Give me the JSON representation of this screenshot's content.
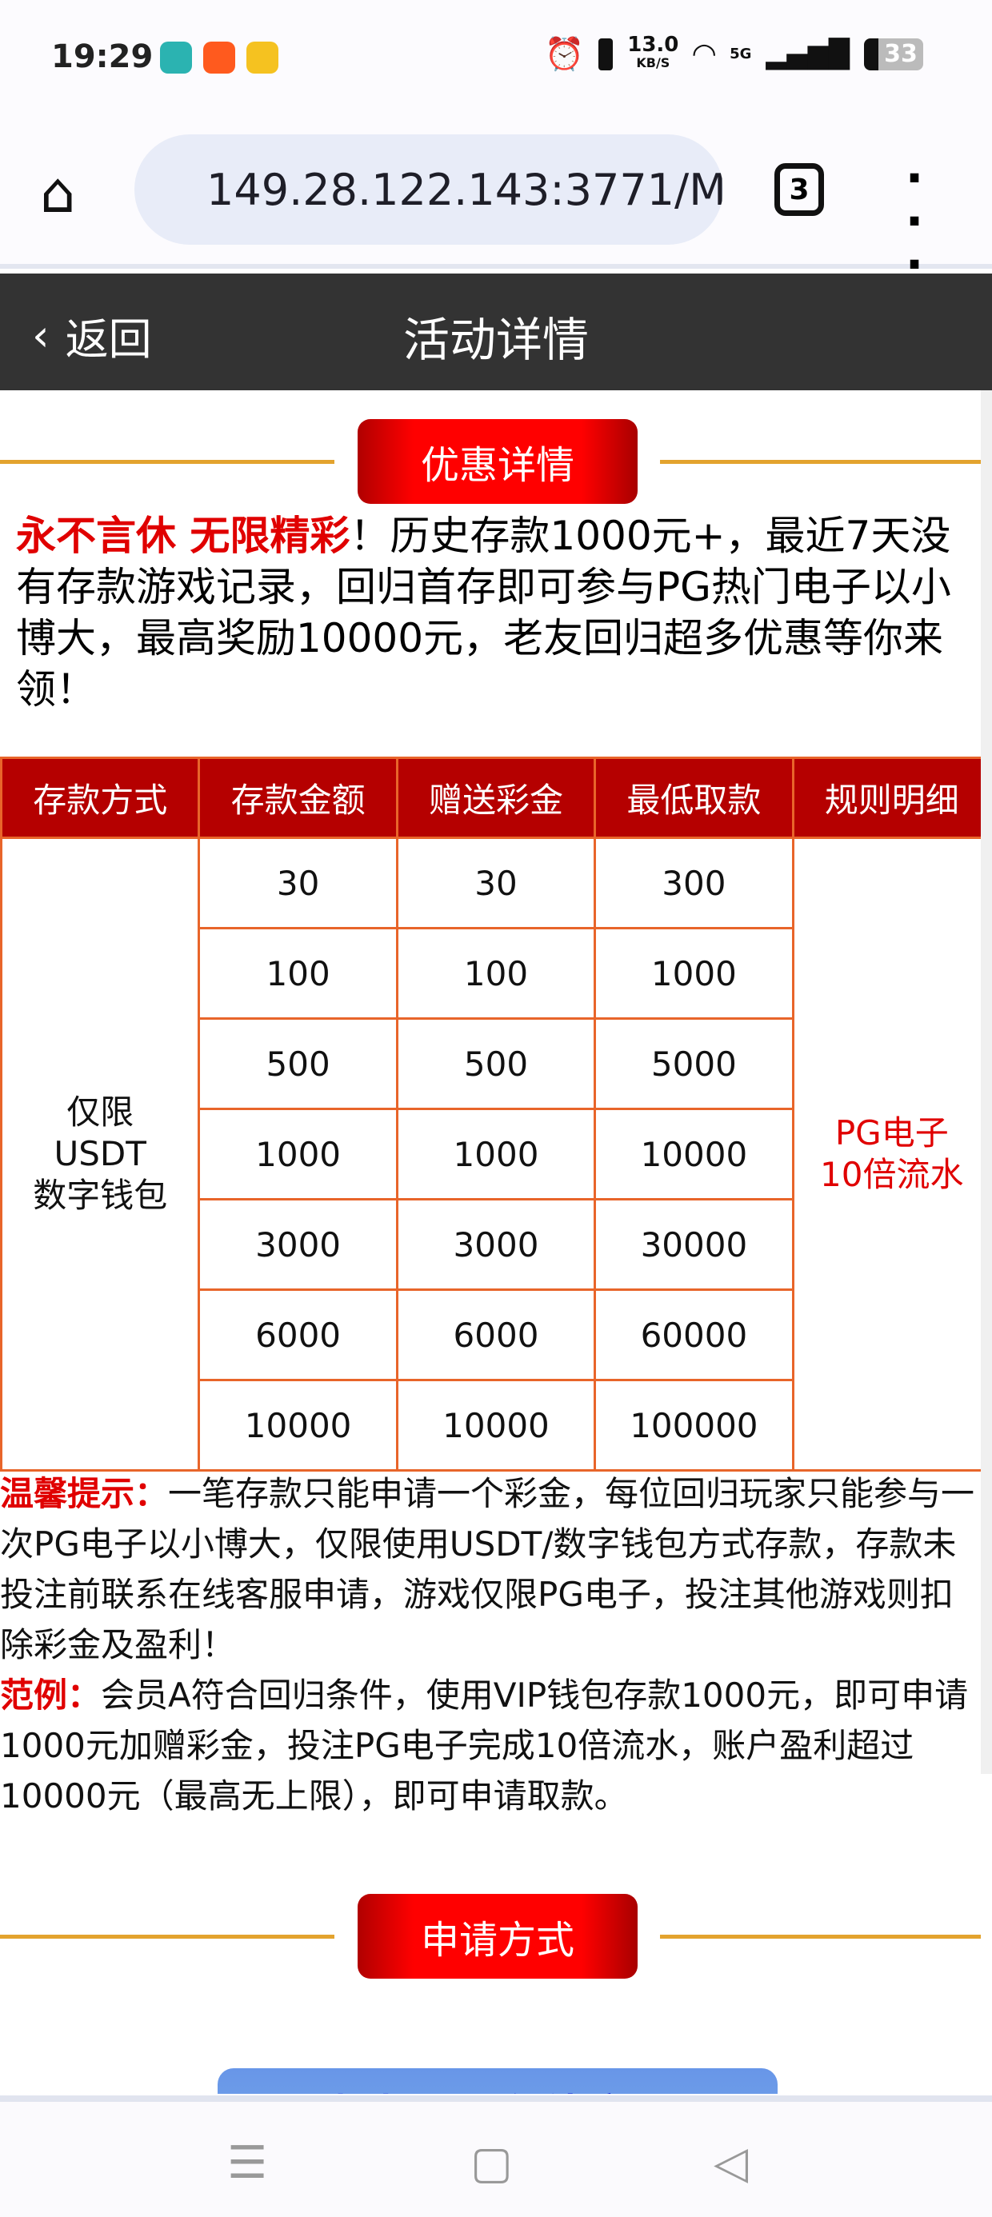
{
  "status_bar": {
    "time": "19:29",
    "app_icons": [
      "boss-zhipin-icon",
      "58-tongcheng-icon",
      "tencent-video-icon"
    ],
    "net_speed": "13.0",
    "net_unit": "KB/S",
    "network": "5G",
    "battery": "33"
  },
  "browser": {
    "url": "149.28.122.143:3771/M",
    "tab_count": "3"
  },
  "header": {
    "back_label": "返回",
    "title": "活动详情"
  },
  "section1": {
    "title": "优惠详情"
  },
  "intro": {
    "highlight": "永不言休 无限精彩",
    "text": "！历史存款1000元+，最近7天没有存款游戏记录，回归首存即可参与PG热门电子以小博大，最高奖励10000元，老友回归超多优惠等你来领！"
  },
  "table": {
    "headers": [
      "存款方式",
      "存款金额",
      "赠送彩金",
      "最低取款",
      "规则明细"
    ],
    "method": "仅限\nUSDT\n数字钱包",
    "rule": "PG电子\n10倍流水",
    "rows": [
      [
        "30",
        "30",
        "300"
      ],
      [
        "100",
        "100",
        "1000"
      ],
      [
        "500",
        "500",
        "5000"
      ],
      [
        "1000",
        "1000",
        "10000"
      ],
      [
        "3000",
        "3000",
        "30000"
      ],
      [
        "6000",
        "6000",
        "60000"
      ],
      [
        "10000",
        "10000",
        "100000"
      ]
    ]
  },
  "notes": {
    "tip_label": "温馨提示：",
    "tip_text": "一笔存款只能申请一个彩金，每位回归玩家只能参与一次PG电子以小博大，仅限使用USDT/数字钱包方式存款，存款未投注前联系在线客服申请，游戏仅限PG电子，投注其他游戏则扣除彩金及盈利！",
    "example_label": "范例：",
    "example_text": "会员A符合回归条件，使用VIP钱包存款1000元，即可申请1000元加赠彩金，投注PG电子完成10倍流水，账户盈利超过10000元（最高无上限），即可申请取款。"
  },
  "section2": {
    "title": "申请方式"
  },
  "contact_button": "点击联系在线客服",
  "colors": {
    "accent_red": "#e00000",
    "header_bg": "#333333",
    "table_border": "#e8652a",
    "divider": "#e3a32e"
  }
}
